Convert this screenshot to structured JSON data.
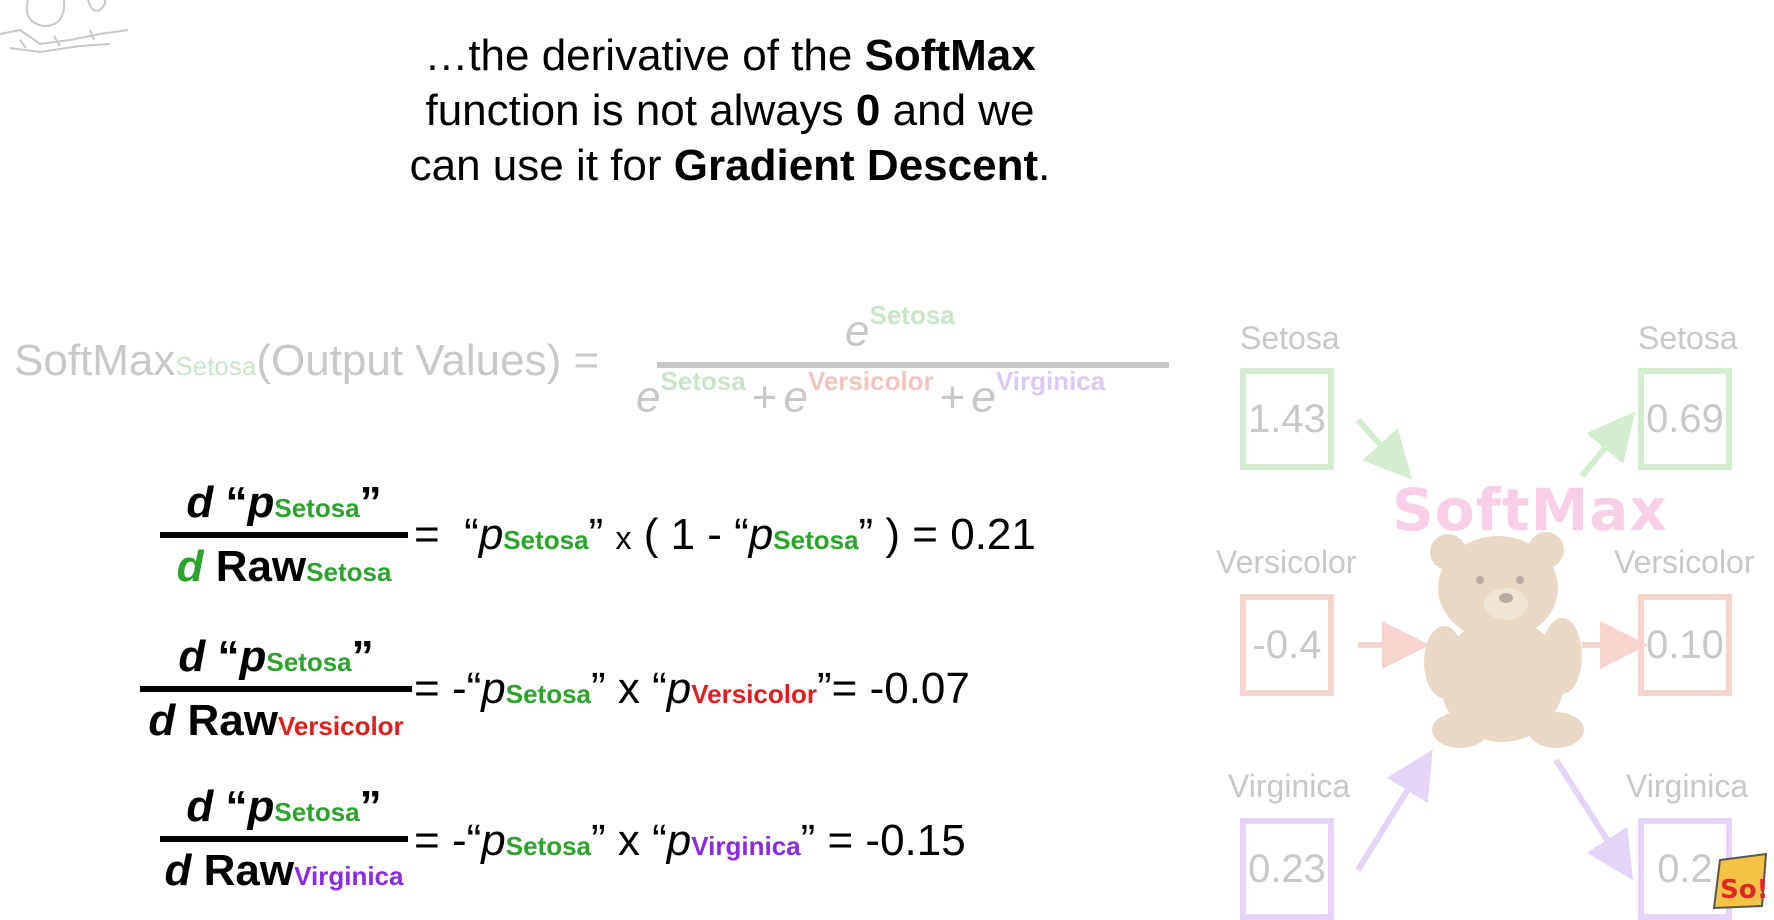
{
  "heading": {
    "l1a": "…the derivative of the ",
    "l1b": "SoftMax",
    "l2a": "function is not always ",
    "l2b": "0",
    "l2c": " and we",
    "l3a": "can use it for ",
    "l3b": "Gradient Descent",
    "l3c": "."
  },
  "softmax_formula": {
    "lhs_name": "SoftMax",
    "lhs_sub": "Setosa",
    "lhs_arg": "(Output Values) =",
    "e": "e",
    "setosa": "Setosa",
    "versicolor": "Versicolor",
    "virginica": "Virginica",
    "plus": "+"
  },
  "equations": [
    {
      "num_d": "d",
      "num_open": "“",
      "p": "p",
      "p_sub": "Setosa",
      "num_close": "”",
      "den_d": "d",
      "den_raw": "Raw",
      "den_sub": "Setosa",
      "rhs_eq": "=",
      "rhs_open": "“",
      "rhs_p": "p",
      "rhs_sub": "Setosa",
      "rhs_close": "”",
      "rhs_x": "x",
      "rhs_mid": "( 1 - “",
      "rhs_p2": "p",
      "rhs_sub2": "Setosa",
      "rhs_end": "” ) = 0.21"
    },
    {
      "num_d": "d",
      "num_open": "“",
      "p": "p",
      "p_sub": "Setosa",
      "num_close": "”",
      "den_d": "d",
      "den_raw": "Raw",
      "den_sub": "Versicolor",
      "rhs_eq": "=",
      "rhs_open": "-“",
      "rhs_p": "p",
      "rhs_sub": "Setosa",
      "rhs_close": "”",
      "rhs_x": "x",
      "rhs_mid": "“",
      "rhs_p2": "p",
      "rhs_sub2": "Versicolor",
      "rhs_end": "”= -0.07"
    },
    {
      "num_d": "d",
      "num_open": "“",
      "p": "p",
      "p_sub": "Setosa",
      "num_close": "”",
      "den_d": "d",
      "den_raw": "Raw",
      "den_sub": "Virginica",
      "rhs_eq": "=",
      "rhs_open": "-“",
      "rhs_p": "p",
      "rhs_sub": "Setosa",
      "rhs_close": "”",
      "rhs_x": "x",
      "rhs_mid": "“",
      "rhs_p2": "p",
      "rhs_sub2": "Virginica",
      "rhs_end": "” = -0.15"
    }
  ],
  "diagram": {
    "softmax_label": "SoftMax",
    "inputs": [
      {
        "label": "Setosa",
        "value": "1.43"
      },
      {
        "label": "Versicolor",
        "value": "-0.4"
      },
      {
        "label": "Virginica",
        "value": "0.23"
      }
    ],
    "outputs": [
      {
        "label": "Setosa",
        "value": "0.69"
      },
      {
        "label": "Versicolor",
        "value": "0.10"
      },
      {
        "label": "Virginica",
        "value": "0.2"
      }
    ],
    "colors": {
      "setosa": "#2aa52a",
      "versicolor": "#e01e1e",
      "virginica": "#8a2be2"
    }
  }
}
